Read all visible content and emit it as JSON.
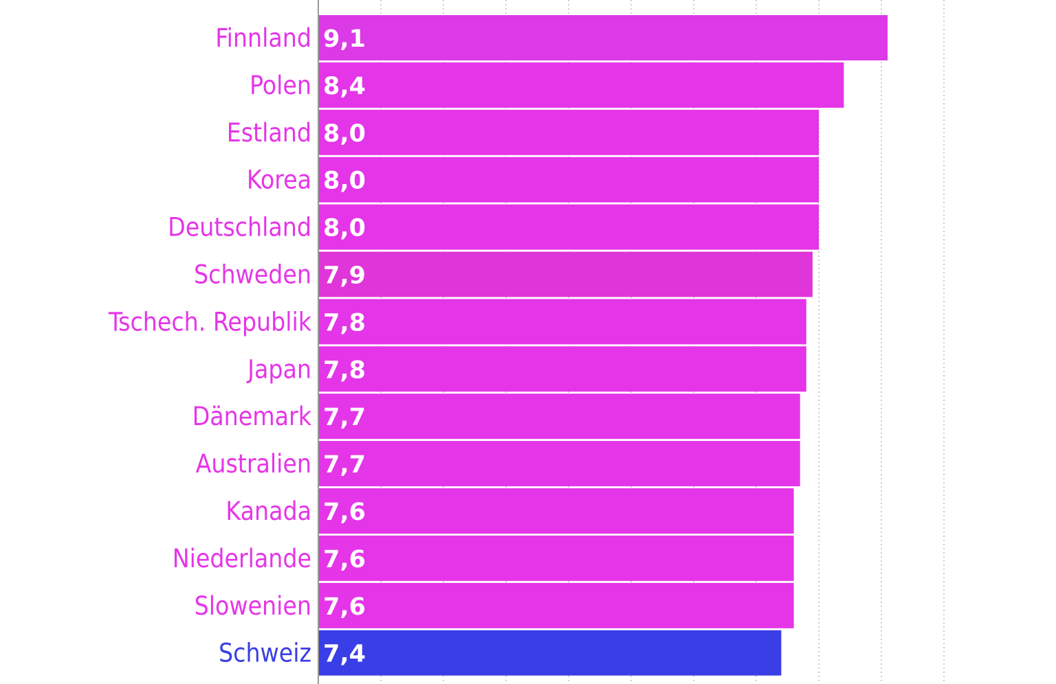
{
  "chart_data": {
    "type": "bar",
    "orientation": "horizontal",
    "categories": [
      "Finnland",
      "Polen",
      "Estland",
      "Korea",
      "Deutschland",
      "Schweden",
      "Tschech. Republik",
      "Japan",
      "Dänemark",
      "Australien",
      "Kanada",
      "Niederlande",
      "Slowenien",
      "Schweiz"
    ],
    "values": [
      9.1,
      8.4,
      8.0,
      8.0,
      8.0,
      7.9,
      7.8,
      7.8,
      7.7,
      7.7,
      7.6,
      7.6,
      7.6,
      7.4
    ],
    "value_labels": [
      "9,1",
      "8,4",
      "8,0",
      "8,0",
      "8,0",
      "7,9",
      "7,8",
      "7,8",
      "7,7",
      "7,7",
      "7,6",
      "7,6",
      "7,6",
      "7,4"
    ],
    "xlim": [
      0,
      10
    ],
    "grid": true,
    "highlight": "Schweiz",
    "colors": {
      "bar": "#e535e8",
      "bar_variants": [
        "#dc3ae6",
        "#e535e8",
        "#e535e8",
        "#e535e8",
        "#e535e8",
        "#e035d8",
        "#e535e8",
        "#e535e8",
        "#e535e8",
        "#e535e8",
        "#e535e8",
        "#e535e8",
        "#e535e8",
        "#3a3ee6"
      ],
      "label": "#e535e8",
      "highlight_label": "#3a3ee6",
      "grid": "#bdbdbd",
      "axis": "#999999"
    }
  }
}
